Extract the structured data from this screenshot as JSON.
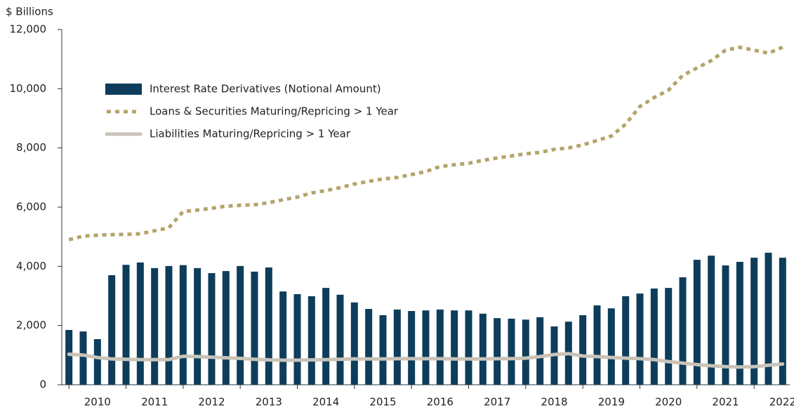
{
  "chart_data": {
    "type": "bar",
    "y_label": "$ Billions",
    "categories": [
      null,
      null,
      "2010",
      null,
      null,
      null,
      "2011",
      null,
      null,
      null,
      "2012",
      null,
      null,
      null,
      "2013",
      null,
      null,
      null,
      "2014",
      null,
      null,
      null,
      "2015",
      null,
      null,
      null,
      "2016",
      null,
      null,
      null,
      "2017",
      null,
      null,
      null,
      "2018",
      null,
      null,
      null,
      "2019",
      null,
      null,
      null,
      "2020",
      null,
      null,
      null,
      "2021",
      null,
      null,
      null,
      "2022"
    ],
    "series": [
      {
        "name": "Interest Rate Derivatives (Notional Amount)",
        "type": "bar",
        "color": "#0d3d5a",
        "values": [
          1850,
          1800,
          1540,
          3700,
          4050,
          4130,
          3940,
          4010,
          4040,
          3940,
          3770,
          3840,
          4010,
          3820,
          3960,
          3150,
          3060,
          2990,
          3270,
          3040,
          2780,
          2560,
          2350,
          2540,
          2490,
          2510,
          2540,
          2510,
          2510,
          2400,
          2250,
          2230,
          2200,
          2280,
          1970,
          2130,
          2350,
          2680,
          2580,
          2990,
          3080,
          3250,
          3270,
          3630,
          4220,
          4360,
          4030,
          4150,
          4290,
          4460,
          4290
        ]
      },
      {
        "name": "Loans & Securities Maturing/Repricing > 1 Year",
        "type": "line",
        "dash": true,
        "color": "#b5a36a",
        "values": [
          4900,
          5020,
          5050,
          5070,
          5080,
          5100,
          5200,
          5300,
          5850,
          5900,
          5960,
          6030,
          6060,
          6080,
          6150,
          6250,
          6340,
          6480,
          6560,
          6660,
          6780,
          6870,
          6950,
          7000,
          7100,
          7200,
          7370,
          7430,
          7480,
          7580,
          7660,
          7730,
          7800,
          7850,
          7950,
          8000,
          8100,
          8250,
          8400,
          8800,
          9400,
          9700,
          9950,
          10450,
          10700,
          10950,
          11300,
          11400,
          11300,
          11200,
          11400
        ]
      },
      {
        "name": "Liabilities Maturing/Repricing > 1 Year",
        "type": "line",
        "dash": false,
        "color": "#c9c3b8",
        "values": [
          1030,
          1000,
          920,
          870,
          860,
          850,
          850,
          850,
          960,
          950,
          930,
          910,
          890,
          860,
          840,
          830,
          830,
          840,
          850,
          860,
          870,
          870,
          870,
          880,
          880,
          880,
          880,
          870,
          870,
          870,
          880,
          880,
          900,
          950,
          1020,
          1050,
          970,
          950,
          920,
          900,
          880,
          850,
          780,
          730,
          680,
          640,
          610,
          600,
          610,
          660,
          700
        ]
      }
    ],
    "ylim": [
      0,
      12000
    ],
    "yticks": [
      0,
      {
        "value": 2000,
        "label": "2,000"
      },
      {
        "value": 4000,
        "label": "4,000"
      },
      {
        "value": 6000,
        "label": "6,000"
      },
      {
        "value": 8000,
        "label": "8,000"
      },
      {
        "value": 10000,
        "label": "10,000"
      },
      {
        "value": 12000,
        "label": "12,000"
      }
    ],
    "grid": false,
    "legend": "upper left"
  }
}
